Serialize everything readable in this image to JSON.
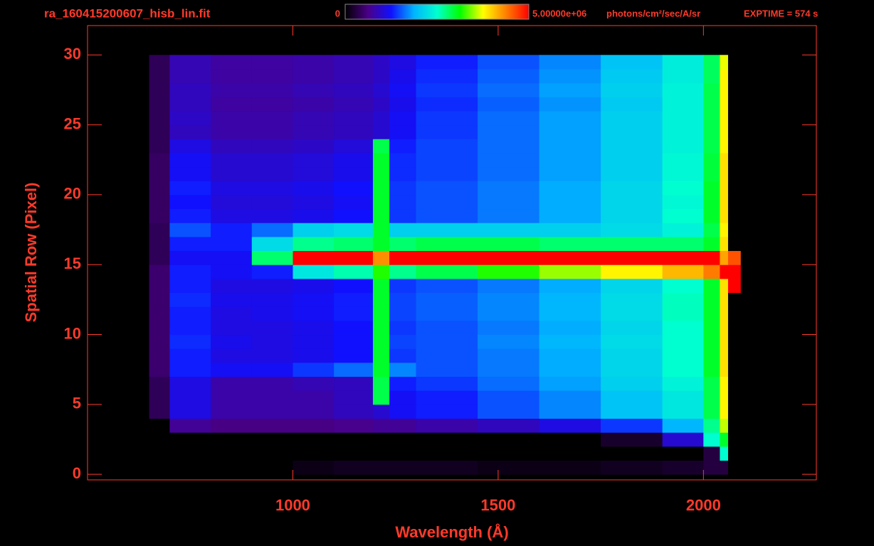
{
  "chart_data": {
    "type": "heatmap",
    "title": "ra_160415200607_hisb_lin.fit",
    "exptime": "EXPTIME = 574 s",
    "x_label": "Wavelength (Å)",
    "y_label": "Spatial Row (Pixel)",
    "xlim": [
      500,
      2275
    ],
    "ylim": [
      -0.4,
      32.1
    ],
    "xticks": [
      1000,
      1500,
      2000
    ],
    "yticks": [
      0,
      5,
      10,
      15,
      20,
      25,
      30
    ],
    "zlim": [
      0,
      5000000
    ],
    "zticks": [
      0,
      {
        "value": 5000000,
        "label": "5.00000e+06"
      }
    ],
    "z_unit": "photons/cm²/sec/A/sr",
    "colormap": [
      "#000000",
      "#4a0088",
      "#1010ff",
      "#00b4ff",
      "#00ffd0",
      "#00ff00",
      "#ffff00",
      "#ff8000",
      "#ff0000"
    ],
    "axis_color": "#ff3a2a",
    "x_edges": [
      650,
      700,
      800,
      900,
      1000,
      1100,
      1195,
      1235,
      1300,
      1450,
      1600,
      1750,
      1900,
      2000,
      2040,
      2060,
      2090
    ],
    "y_edges": [
      0,
      1,
      2,
      3,
      4,
      5,
      6,
      7,
      8,
      9,
      10,
      11,
      12,
      13,
      14,
      15,
      16,
      17,
      18,
      19,
      20,
      21,
      22,
      23,
      24,
      25,
      26,
      27,
      28,
      29,
      30
    ],
    "z": [
      [
        0,
        0,
        0,
        0,
        100000,
        150000,
        150000,
        150000,
        150000,
        100000,
        100000,
        150000,
        200000,
        300000,
        300000,
        0
      ],
      [
        0,
        0,
        0,
        0,
        0,
        0,
        0,
        0,
        0,
        0,
        0,
        0,
        0,
        300000,
        2500000,
        0
      ],
      [
        0,
        0,
        0,
        0,
        0,
        0,
        0,
        0,
        0,
        0,
        0,
        200000,
        1000000,
        2500000,
        3000000,
        0
      ],
      [
        0,
        700000,
        600000,
        600000,
        600000,
        650000,
        700000,
        700000,
        800000,
        900000,
        1100000,
        1400000,
        1900000,
        2700000,
        3600000,
        0
      ],
      [
        400000,
        1100000,
        800000,
        800000,
        800000,
        900000,
        1000000,
        1200000,
        1300000,
        1500000,
        1700000,
        2000000,
        2300000,
        2900000,
        3800000,
        0
      ],
      [
        400000,
        1100000,
        800000,
        800000,
        800000,
        900000,
        2900000,
        1200000,
        1300000,
        1500000,
        1700000,
        2000000,
        2300000,
        2900000,
        3800000,
        0
      ],
      [
        400000,
        1100000,
        800000,
        800000,
        850000,
        900000,
        2900000,
        1300000,
        1400000,
        1600000,
        1800000,
        2100000,
        2400000,
        2900000,
        3800000,
        0
      ],
      [
        500000,
        1300000,
        1200000,
        1200000,
        1400000,
        1600000,
        3000000,
        1700000,
        1500000,
        1650000,
        1850000,
        2150000,
        2500000,
        3000000,
        3900000,
        0
      ],
      [
        500000,
        1300000,
        1100000,
        1100000,
        1150000,
        1250000,
        3000000,
        1400000,
        1500000,
        1650000,
        1850000,
        2150000,
        2500000,
        3000000,
        3900000,
        0
      ],
      [
        500000,
        1350000,
        1150000,
        1100000,
        1150000,
        1250000,
        3000000,
        1450000,
        1500000,
        1700000,
        1900000,
        2200000,
        2500000,
        3000000,
        3900000,
        0
      ],
      [
        500000,
        1300000,
        1100000,
        1100000,
        1150000,
        1250000,
        3000000,
        1400000,
        1500000,
        1650000,
        1850000,
        2150000,
        2500000,
        3000000,
        3900000,
        0
      ],
      [
        500000,
        1300000,
        1100000,
        1150000,
        1200000,
        1300000,
        3000000,
        1450000,
        1550000,
        1700000,
        1900000,
        2200000,
        2550000,
        3000000,
        3900000,
        0
      ],
      [
        500000,
        1350000,
        1150000,
        1150000,
        1200000,
        1300000,
        3000000,
        1450000,
        1550000,
        1700000,
        1900000,
        2200000,
        2550000,
        3000000,
        3900000,
        0
      ],
      [
        500000,
        1300000,
        1100000,
        1100000,
        1150000,
        1250000,
        3000000,
        1400000,
        1500000,
        1650000,
        1850000,
        2150000,
        2500000,
        3000000,
        3900000,
        5000000
      ],
      [
        500000,
        1300000,
        1200000,
        1300000,
        2300000,
        2600000,
        3200000,
        2700000,
        2900000,
        3200000,
        3500000,
        3800000,
        4100000,
        4400000,
        5000000,
        5000000
      ],
      [
        400000,
        1200000,
        1200000,
        2800000,
        5000000,
        5000000,
        4300000,
        5000000,
        5000000,
        5000000,
        5000000,
        5000000,
        5000000,
        5000000,
        4200000,
        4600000
      ],
      [
        400000,
        1300000,
        1300000,
        2200000,
        2700000,
        2800000,
        3000000,
        2800000,
        2900000,
        2900000,
        2800000,
        2800000,
        2800000,
        3000000,
        3900000,
        0
      ],
      [
        400000,
        1500000,
        1300000,
        1600000,
        2100000,
        2200000,
        3000000,
        2100000,
        2100000,
        2100000,
        2100000,
        2200000,
        2400000,
        2900000,
        3800000,
        0
      ],
      [
        450000,
        1300000,
        1100000,
        1100000,
        1150000,
        1250000,
        3000000,
        1400000,
        1500000,
        1650000,
        1850000,
        2150000,
        2500000,
        3000000,
        3900000,
        0
      ],
      [
        450000,
        1250000,
        1050000,
        1050000,
        1100000,
        1200000,
        3000000,
        1400000,
        1500000,
        1650000,
        1850000,
        2150000,
        2450000,
        3000000,
        3900000,
        0
      ],
      [
        450000,
        1300000,
        1100000,
        1100000,
        1150000,
        1250000,
        3000000,
        1400000,
        1500000,
        1650000,
        1850000,
        2150000,
        2500000,
        3000000,
        3900000,
        0
      ],
      [
        450000,
        1200000,
        1000000,
        1000000,
        1050000,
        1150000,
        3000000,
        1350000,
        1450000,
        1600000,
        1800000,
        2100000,
        2450000,
        2950000,
        3900000,
        0
      ],
      [
        450000,
        1200000,
        1000000,
        1000000,
        1050000,
        1150000,
        3000000,
        1350000,
        1450000,
        1600000,
        1800000,
        2100000,
        2450000,
        2950000,
        3900000,
        0
      ],
      [
        400000,
        1100000,
        900000,
        900000,
        950000,
        1050000,
        2900000,
        1300000,
        1450000,
        1600000,
        1800000,
        2100000,
        2400000,
        2900000,
        3800000,
        0
      ],
      [
        400000,
        900000,
        800000,
        800000,
        850000,
        900000,
        1000000,
        1200000,
        1400000,
        1600000,
        1800000,
        2100000,
        2400000,
        2900000,
        3800000,
        0
      ],
      [
        400000,
        950000,
        800000,
        800000,
        850000,
        900000,
        1000000,
        1200000,
        1400000,
        1600000,
        1800000,
        2100000,
        2400000,
        2900000,
        3800000,
        0
      ],
      [
        400000,
        900000,
        750000,
        750000,
        800000,
        850000,
        950000,
        1150000,
        1350000,
        1550000,
        1750000,
        2050000,
        2400000,
        2900000,
        3800000,
        0
      ],
      [
        400000,
        900000,
        800000,
        800000,
        850000,
        900000,
        1000000,
        1200000,
        1400000,
        1600000,
        1800000,
        2100000,
        2400000,
        2900000,
        3800000,
        0
      ],
      [
        400000,
        850000,
        750000,
        750000,
        800000,
        850000,
        950000,
        1150000,
        1350000,
        1550000,
        1750000,
        2050000,
        2350000,
        2850000,
        3800000,
        0
      ],
      [
        400000,
        850000,
        750000,
        750000,
        800000,
        850000,
        950000,
        1100000,
        1300000,
        1500000,
        1700000,
        2000000,
        2350000,
        2850000,
        3700000,
        0
      ]
    ]
  }
}
